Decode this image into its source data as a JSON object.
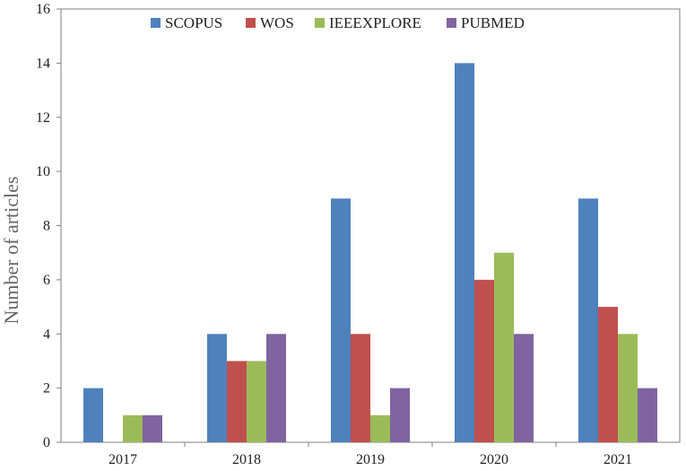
{
  "chart_data": {
    "type": "bar",
    "title": "",
    "xlabel": "",
    "ylabel": "Number of articles",
    "ylim": [
      0,
      16
    ],
    "yticks": [
      0,
      2,
      4,
      6,
      8,
      10,
      12,
      14,
      16
    ],
    "grid": false,
    "legend_position": "top",
    "categories": [
      "2017",
      "2018",
      "2019",
      "2020",
      "2021"
    ],
    "series": [
      {
        "name": "SCOPUS",
        "color": "#4F81BD",
        "values": [
          2,
          4,
          9,
          14,
          9
        ]
      },
      {
        "name": "WOS",
        "color": "#C0504D",
        "values": [
          0,
          3,
          4,
          6,
          5
        ]
      },
      {
        "name": "IEEEXPLORE",
        "color": "#9BBB59",
        "values": [
          1,
          3,
          1,
          7,
          4
        ]
      },
      {
        "name": "PUBMED",
        "color": "#8064A2",
        "values": [
          1,
          4,
          2,
          4,
          2
        ]
      }
    ]
  }
}
